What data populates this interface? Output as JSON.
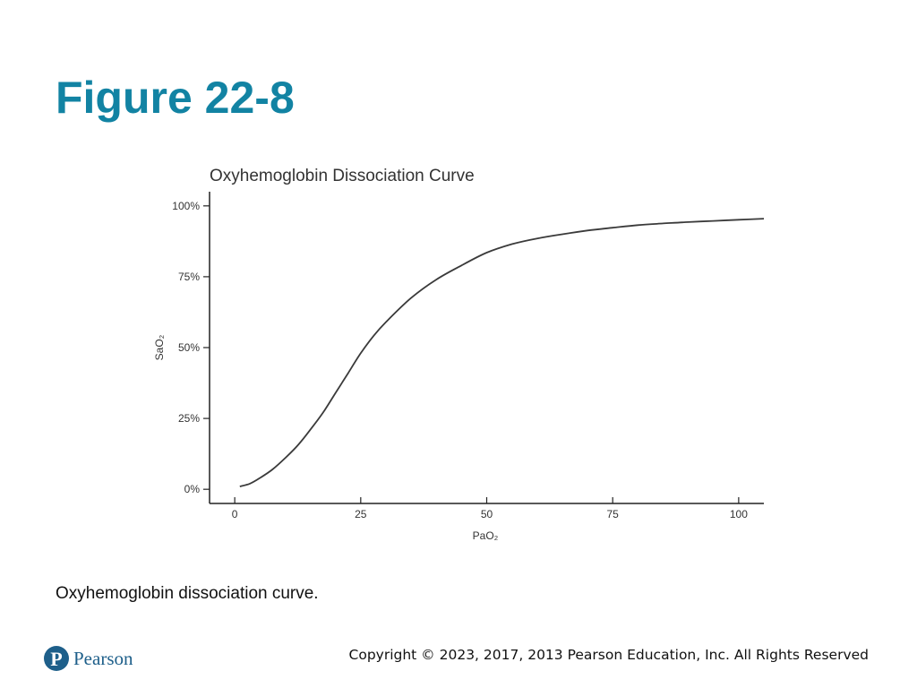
{
  "slide": {
    "title": "Figure 22-8",
    "caption": "Oxyhemoglobin dissociation curve.",
    "copyright": "Copyright © 2023, 2017, 2013 Pearson Education, Inc. All Rights Reserved",
    "logo_text": "Pearson",
    "logo_mark": "P",
    "title_color": "#1283a3",
    "logo_color": "#1e5f8a"
  },
  "chart_data": {
    "type": "line",
    "title": "Oxyhemoglobin Dissociation Curve",
    "xlabel": "PaO₂",
    "ylabel": "SaO₂",
    "xlim": [
      -5,
      105
    ],
    "ylim": [
      -5,
      105
    ],
    "x_ticks": [
      0,
      25,
      50,
      75,
      100
    ],
    "x_tick_labels": [
      "0",
      "25",
      "50",
      "75",
      "100"
    ],
    "y_ticks": [
      0,
      25,
      50,
      75,
      100
    ],
    "y_tick_labels": [
      "0%",
      "25%",
      "50%",
      "75%",
      "100%"
    ],
    "grid": false,
    "series": [
      {
        "x": [
          1,
          3,
          5,
          7.5,
          10,
          12.5,
          15,
          17.5,
          20,
          22.5,
          25,
          27.5,
          30,
          35,
          40,
          45,
          50,
          55,
          60,
          65,
          70,
          75,
          80,
          85,
          90,
          95,
          100,
          105
        ],
        "y": [
          1,
          2,
          4,
          7,
          11,
          15.5,
          21,
          27,
          34,
          41,
          48,
          54,
          59,
          67.5,
          74,
          79,
          83.5,
          86.5,
          88.5,
          90,
          91.3,
          92.3,
          93.2,
          93.8,
          94.3,
          94.7,
          95.1,
          95.5
        ],
        "color": "#3a3a3a"
      }
    ]
  }
}
